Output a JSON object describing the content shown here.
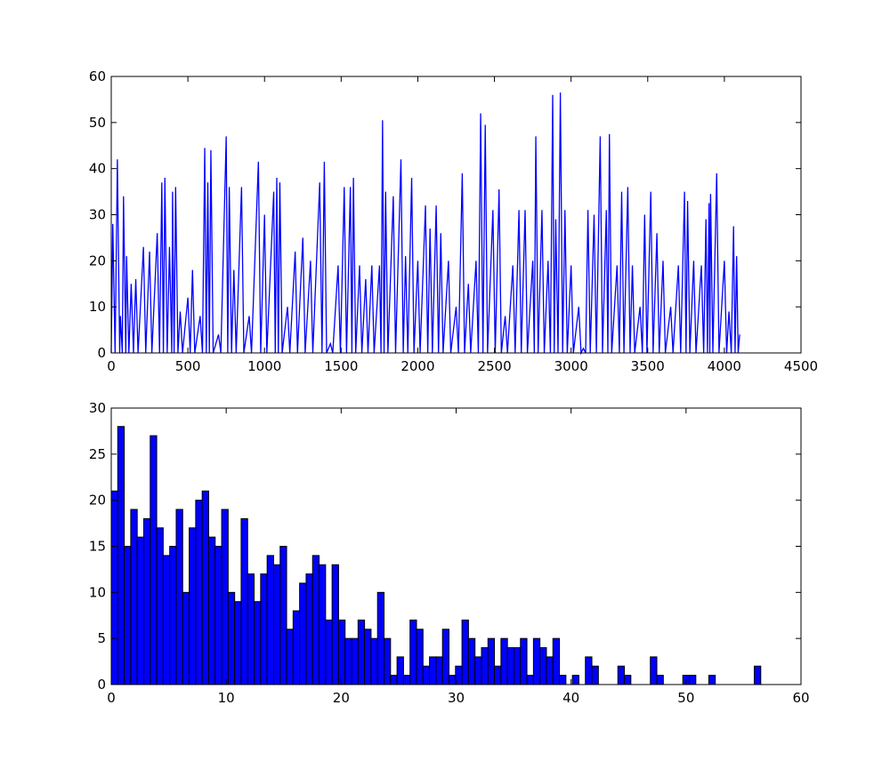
{
  "chart_data": [
    {
      "type": "line",
      "color": "#0000ff",
      "x": [
        0,
        10,
        25,
        40,
        55,
        60,
        72,
        80,
        95,
        100,
        115,
        130,
        145,
        160,
        175,
        210,
        225,
        250,
        265,
        300,
        315,
        330,
        340,
        350,
        365,
        380,
        395,
        400,
        410,
        420,
        435,
        450,
        465,
        500,
        515,
        530,
        545,
        580,
        595,
        610,
        620,
        630,
        640,
        650,
        665,
        700,
        715,
        750,
        760,
        770,
        785,
        800,
        815,
        850,
        865,
        900,
        915,
        960,
        975,
        1000,
        1015,
        1060,
        1070,
        1080,
        1090,
        1100,
        1115,
        1150,
        1165,
        1200,
        1215,
        1250,
        1265,
        1300,
        1315,
        1360,
        1375,
        1390,
        1405,
        1430,
        1445,
        1480,
        1495,
        1520,
        1535,
        1560,
        1570,
        1580,
        1595,
        1620,
        1635,
        1660,
        1675,
        1700,
        1715,
        1750,
        1760,
        1770,
        1780,
        1790,
        1805,
        1840,
        1855,
        1890,
        1905,
        1920,
        1935,
        1960,
        1975,
        2000,
        2015,
        2050,
        2065,
        2080,
        2095,
        2120,
        2135,
        2150,
        2165,
        2200,
        2215,
        2250,
        2265,
        2290,
        2305,
        2330,
        2345,
        2380,
        2395,
        2410,
        2425,
        2440,
        2455,
        2490,
        2505,
        2530,
        2545,
        2570,
        2585,
        2620,
        2635,
        2660,
        2675,
        2700,
        2715,
        2750,
        2760,
        2770,
        2785,
        2810,
        2825,
        2850,
        2865,
        2880,
        2890,
        2900,
        2915,
        2930,
        2945,
        2960,
        2975,
        3000,
        3015,
        3050,
        3065,
        3080,
        3095,
        3110,
        3125,
        3150,
        3165,
        3190,
        3205,
        3230,
        3240,
        3250,
        3265,
        3300,
        3315,
        3330,
        3345,
        3370,
        3385,
        3400,
        3415,
        3450,
        3465,
        3480,
        3495,
        3520,
        3535,
        3560,
        3575,
        3600,
        3615,
        3650,
        3665,
        3700,
        3715,
        3740,
        3750,
        3760,
        3775,
        3800,
        3815,
        3850,
        3865,
        3880,
        3890,
        3900,
        3905,
        3910,
        3925,
        3950,
        3965,
        4000,
        4015,
        4030,
        4045,
        4060,
        4070,
        4080,
        4090,
        4100
      ],
      "values": [
        0,
        28,
        0,
        42,
        0,
        8,
        0,
        34,
        0,
        21,
        0,
        15,
        0,
        16,
        0,
        23,
        0,
        22,
        0,
        26,
        0,
        37,
        0,
        38,
        0,
        23,
        0,
        35,
        0,
        36,
        0,
        9,
        0,
        12,
        0,
        18,
        0,
        8,
        0,
        44.5,
        0,
        37,
        0,
        44,
        0,
        4,
        0,
        47,
        0,
        36,
        0,
        18,
        0,
        36,
        0,
        8,
        0,
        41.5,
        0,
        30,
        0,
        35,
        0,
        38,
        0,
        37,
        0,
        10,
        0,
        22,
        0,
        25,
        0,
        20,
        0,
        37,
        0,
        41.5,
        0,
        2,
        0,
        19,
        0,
        36,
        0,
        36,
        0,
        38,
        0,
        19,
        0,
        16,
        0,
        19,
        0,
        19,
        0,
        50.5,
        0,
        35,
        0,
        34,
        0,
        42,
        0,
        21,
        0,
        38,
        0,
        20,
        0,
        32,
        0,
        27,
        0,
        32,
        0,
        26,
        0,
        20,
        0,
        10,
        0,
        39,
        0,
        15,
        0,
        20,
        0,
        52,
        0,
        49.5,
        0,
        31,
        0,
        35.5,
        0,
        8,
        0,
        19,
        0,
        31,
        0,
        31,
        0,
        20,
        0,
        47,
        0,
        31,
        0,
        20,
        0,
        56,
        0,
        29,
        0,
        56.5,
        0,
        31,
        0,
        19,
        0,
        10,
        0,
        1,
        0,
        31,
        0,
        30,
        0,
        47,
        0,
        31,
        0,
        47.5,
        0,
        19,
        0,
        35,
        0,
        36,
        0,
        19,
        0,
        10,
        0,
        30,
        0,
        35,
        0,
        26,
        0,
        20,
        0,
        10,
        0,
        19,
        0,
        35,
        0,
        33,
        0,
        20,
        0,
        19,
        0,
        29,
        0,
        32.5,
        0,
        34.5,
        0,
        39,
        0,
        20,
        0,
        9,
        0,
        27.5,
        0,
        21,
        0,
        4
      ],
      "xlim": [
        0,
        4500
      ],
      "ylim": [
        0,
        60
      ],
      "xticks": [
        0,
        500,
        1000,
        1500,
        2000,
        2500,
        3000,
        3500,
        4000,
        4500
      ],
      "yticks": [
        0,
        10,
        20,
        30,
        40,
        50,
        60
      ]
    },
    {
      "type": "histogram",
      "color": "#0000ff",
      "bins": [
        0,
        0.565,
        1.13,
        1.695,
        2.26,
        2.825,
        3.39,
        3.955,
        4.52,
        5.085,
        5.65,
        6.215,
        6.78,
        7.345,
        7.91,
        8.475,
        9.04,
        9.605,
        10.17,
        10.735,
        11.3,
        11.865,
        12.43,
        12.995,
        13.56,
        14.125,
        14.69,
        15.255,
        15.82,
        16.385,
        16.95,
        17.515,
        18.08,
        18.645,
        19.21,
        19.775,
        20.34,
        20.905,
        21.47,
        22.035,
        22.6,
        23.165,
        23.73,
        24.295,
        24.86,
        25.425,
        25.99,
        26.555,
        27.12,
        27.685,
        28.25,
        28.815,
        29.38,
        29.945,
        30.51,
        31.075,
        31.64,
        32.205,
        32.77,
        33.335,
        33.9,
        34.465,
        35.03,
        35.595,
        36.16,
        36.725,
        37.29,
        37.855,
        38.42,
        38.985,
        39.55,
        40.115,
        40.68,
        41.245,
        41.81,
        42.375,
        42.94,
        43.505,
        44.07,
        44.635,
        45.2,
        45.765,
        46.33,
        46.895,
        47.46,
        48.025,
        48.59,
        49.155,
        49.72,
        50.285,
        50.85,
        51.415,
        51.98,
        52.545,
        53.11,
        53.675,
        54.24,
        54.805,
        55.37,
        55.935,
        56.5
      ],
      "values": [
        21,
        28,
        15,
        19,
        16,
        18,
        27,
        17,
        14,
        15,
        19,
        10,
        17,
        20,
        21,
        16,
        15,
        19,
        10,
        9,
        18,
        12,
        9,
        12,
        14,
        13,
        15,
        6,
        8,
        11,
        12,
        14,
        13,
        7,
        13,
        7,
        5,
        5,
        7,
        6,
        5,
        10,
        5,
        1,
        3,
        1,
        7,
        6,
        2,
        3,
        3,
        6,
        1,
        2,
        7,
        5,
        3,
        4,
        5,
        2,
        5,
        4,
        4,
        5,
        1,
        5,
        4,
        3,
        5,
        1,
        0,
        1,
        0,
        3,
        2,
        0,
        0,
        0,
        2,
        1,
        0,
        0,
        0,
        3,
        1,
        0,
        0,
        0,
        1,
        1,
        0,
        0,
        1,
        0,
        0,
        0,
        0,
        0,
        0,
        2
      ],
      "xlim": [
        0,
        60
      ],
      "ylim": [
        0,
        30
      ],
      "xticks": [
        0,
        10,
        20,
        30,
        40,
        50,
        60
      ],
      "yticks": [
        0,
        5,
        10,
        15,
        20,
        25,
        30
      ]
    }
  ]
}
